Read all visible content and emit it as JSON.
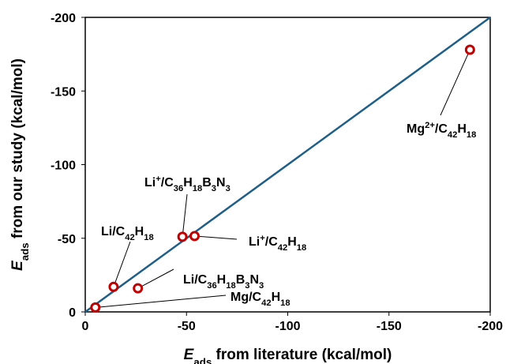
{
  "chart_data": {
    "type": "scatter",
    "x_label": [
      {
        "text": "E",
        "style": "italic"
      },
      {
        "text": "ads",
        "shift": "sub"
      },
      {
        "text": " from literature (kcal/mol)"
      }
    ],
    "y_label": [
      {
        "text": "E",
        "style": "italic"
      },
      {
        "text": "ads",
        "shift": "sub"
      },
      {
        "text": " from our study (kcal/mol)"
      }
    ],
    "xlim": [
      0,
      -200
    ],
    "ylim": [
      0,
      -200
    ],
    "xticks": [
      0,
      -50,
      -100,
      -150,
      -200
    ],
    "yticks": [
      0,
      -50,
      -100,
      -150,
      -200
    ],
    "reference_line": {
      "x": [
        0,
        -200
      ],
      "y": [
        0,
        -200
      ],
      "color": "#1f5f87"
    },
    "series": [
      {
        "color": "#c00000",
        "x": [
          -190,
          -48,
          -54,
          -14,
          -26,
          -5
        ],
        "values": [
          -178,
          -51,
          -51.5,
          -17,
          -16,
          -3
        ]
      }
    ],
    "annotations": [
      [
        {
          "text": "Mg"
        },
        {
          "text": "2+",
          "shift": "sup"
        },
        {
          "text": "/C"
        },
        {
          "text": "42",
          "shift": "sub"
        },
        {
          "text": "H"
        },
        {
          "text": "18",
          "shift": "sub"
        }
      ],
      [
        {
          "text": "Li"
        },
        {
          "text": "+",
          "shift": "sup"
        },
        {
          "text": "/C"
        },
        {
          "text": "36",
          "shift": "sub"
        },
        {
          "text": "H"
        },
        {
          "text": "18",
          "shift": "sub"
        },
        {
          "text": "B"
        },
        {
          "text": "3",
          "shift": "sub"
        },
        {
          "text": "N"
        },
        {
          "text": "3",
          "shift": "sub"
        }
      ],
      [
        {
          "text": "Li"
        },
        {
          "text": "+",
          "shift": "sup"
        },
        {
          "text": "/C"
        },
        {
          "text": "42",
          "shift": "sub"
        },
        {
          "text": "H"
        },
        {
          "text": "18",
          "shift": "sub"
        }
      ],
      [
        {
          "text": "Li/C"
        },
        {
          "text": "42",
          "shift": "sub"
        },
        {
          "text": "H"
        },
        {
          "text": "18",
          "shift": "sub"
        }
      ],
      [
        {
          "text": "Li/C"
        },
        {
          "text": "36",
          "shift": "sub"
        },
        {
          "text": "H"
        },
        {
          "text": "18",
          "shift": "sub"
        },
        {
          "text": "B"
        },
        {
          "text": "3",
          "shift": "sub"
        },
        {
          "text": "N"
        },
        {
          "text": "3",
          "shift": "sub"
        }
      ],
      [
        {
          "text": "Mg/C"
        },
        {
          "text": "42",
          "shift": "sub"
        },
        {
          "text": "H"
        },
        {
          "text": "18",
          "shift": "sub"
        }
      ]
    ]
  }
}
